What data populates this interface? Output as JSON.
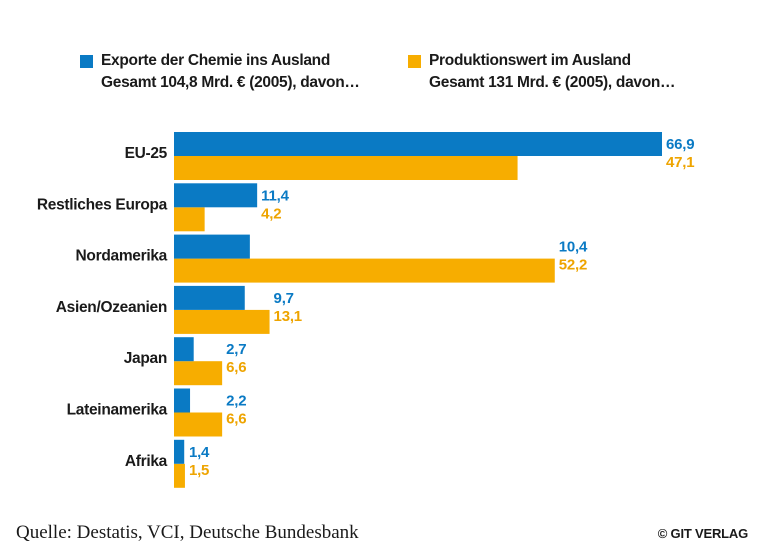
{
  "colors": {
    "exports": "#0a7ac4",
    "production": "#f7ad00",
    "exports_label": "#0a7ac4",
    "production_label": "#eea400"
  },
  "legend": {
    "exports": {
      "line1": "Exporte der Chemie ins Ausland",
      "line2": "Gesamt 104,8 Mrd. € (2005), davon…"
    },
    "production": {
      "line1": "Produktionswert im Ausland",
      "line2": "Gesamt 131 Mrd. € (2005), davon…"
    }
  },
  "chart_data": {
    "type": "bar",
    "orientation": "horizontal",
    "title": "",
    "xlabel": "",
    "ylabel": "",
    "xlim": [
      0,
      67
    ],
    "grid": false,
    "legend_position": "top",
    "categories": [
      "EU-25",
      "Restliches Europa",
      "Nordamerika",
      "Asien/Ozeanien",
      "Japan",
      "Lateinamerika",
      "Afrika"
    ],
    "series": [
      {
        "name": "Exporte der Chemie ins Ausland",
        "values": [
          66.9,
          11.4,
          10.4,
          9.7,
          2.7,
          2.2,
          1.4
        ],
        "labels": [
          "66,9",
          "11,4",
          "10,4",
          "9,7",
          "2,7",
          "2,2",
          "1,4"
        ]
      },
      {
        "name": "Produktionswert im Ausland",
        "values": [
          47.1,
          4.2,
          52.2,
          13.1,
          6.6,
          6.6,
          1.5
        ],
        "labels": [
          "47,1",
          "4,2",
          "52,2",
          "13,1",
          "6,6",
          "6,6",
          "1,5"
        ]
      }
    ]
  },
  "footer": {
    "source": "Quelle: Destatis, VCI, Deutsche Bundesbank",
    "copyright": "© GIT VERLAG"
  }
}
